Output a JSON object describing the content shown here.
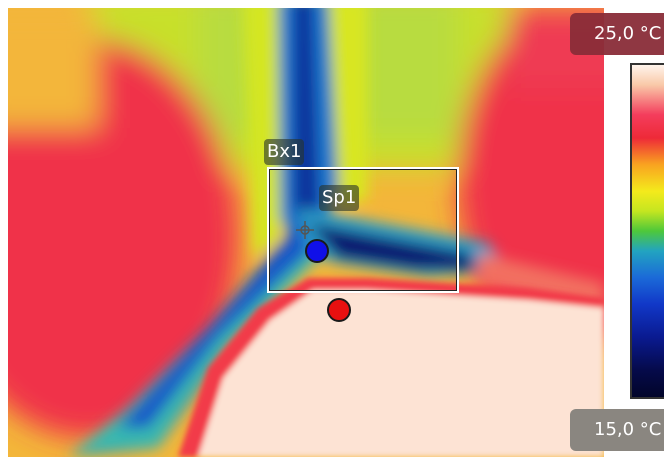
{
  "scale": {
    "max_label": "25,0 °C",
    "min_label": "15,0 °C"
  },
  "measurements": {
    "box_label": "Bx1",
    "spot_label": "Sp1"
  },
  "markers": {
    "cold_spot_color": "#1010e8",
    "hot_spot_color": "#e81010"
  },
  "palette": {
    "hot": "#ef2a45",
    "warm": "#f4ea1c",
    "cold": "#10209c",
    "hottest": "#fde3d4"
  }
}
